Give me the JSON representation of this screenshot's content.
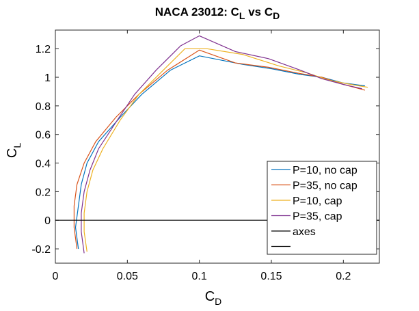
{
  "chart_data": {
    "type": "line",
    "title": {
      "main": "NACA 23012: C",
      "sub1": "L",
      "mid": " vs C",
      "sub2": "D"
    },
    "xlabel": {
      "main": "C",
      "sub": "D"
    },
    "ylabel": {
      "main": "C",
      "sub": "L"
    },
    "xlim": [
      0,
      0.225
    ],
    "ylim": [
      -0.3,
      1.33
    ],
    "xticks": [
      0,
      0.05,
      0.1,
      0.15,
      0.2
    ],
    "xtick_labels": [
      "0",
      "0.05",
      "0.1",
      "0.15",
      "0.2"
    ],
    "yticks": [
      -0.2,
      0,
      0.2,
      0.4,
      0.6,
      0.8,
      1,
      1.2
    ],
    "ytick_labels": [
      "-0.2",
      "0",
      "0.2",
      "0.4",
      "0.6",
      "0.8",
      "1",
      "1.2"
    ],
    "grid": false,
    "legend_placement": "bottom-right",
    "series": [
      {
        "name": "P=10, no cap",
        "color": "#0072BD",
        "x": [
          0.016,
          0.014,
          0.016,
          0.018,
          0.022,
          0.03,
          0.045,
          0.06,
          0.08,
          0.1,
          0.13,
          0.15,
          0.17,
          0.185,
          0.2,
          0.215
        ],
        "y": [
          -0.2,
          -0.05,
          0.1,
          0.25,
          0.4,
          0.55,
          0.72,
          0.88,
          1.05,
          1.15,
          1.09,
          1.06,
          1.02,
          1.0,
          0.96,
          0.94
        ]
      },
      {
        "name": "P=35, no cap",
        "color": "#D95319",
        "x": [
          0.015,
          0.013,
          0.013,
          0.015,
          0.02,
          0.028,
          0.042,
          0.058,
          0.078,
          0.1,
          0.125,
          0.148,
          0.168,
          0.185,
          0.2,
          0.215
        ],
        "y": [
          -0.2,
          -0.05,
          0.1,
          0.25,
          0.4,
          0.55,
          0.72,
          0.88,
          1.05,
          1.19,
          1.1,
          1.07,
          1.03,
          1.0,
          0.95,
          0.91
        ]
      },
      {
        "name": "P=10, cap",
        "color": "#EDB120",
        "x": [
          0.022,
          0.02,
          0.02,
          0.022,
          0.026,
          0.033,
          0.045,
          0.058,
          0.075,
          0.09,
          0.105,
          0.13,
          0.155,
          0.175,
          0.19,
          0.205,
          0.217
        ],
        "y": [
          -0.22,
          -0.08,
          0.05,
          0.2,
          0.35,
          0.5,
          0.7,
          0.88,
          1.05,
          1.2,
          1.2,
          1.16,
          1.08,
          1.03,
          0.98,
          0.95,
          0.93
        ]
      },
      {
        "name": "P=35, cap",
        "color": "#7E2F8E",
        "x": [
          0.02,
          0.018,
          0.018,
          0.02,
          0.024,
          0.03,
          0.043,
          0.055,
          0.07,
          0.087,
          0.1,
          0.125,
          0.148,
          0.17,
          0.185,
          0.2,
          0.213
        ],
        "y": [
          -0.23,
          -0.08,
          0.05,
          0.2,
          0.35,
          0.5,
          0.7,
          0.88,
          1.05,
          1.22,
          1.29,
          1.18,
          1.13,
          1.05,
          0.99,
          0.95,
          0.92
        ]
      },
      {
        "name": "axes",
        "color": "#000000",
        "x": [
          0,
          0.225
        ],
        "y": [
          0,
          0
        ]
      },
      {
        "name": "",
        "color": "#000000",
        "x": [],
        "y": []
      }
    ]
  }
}
